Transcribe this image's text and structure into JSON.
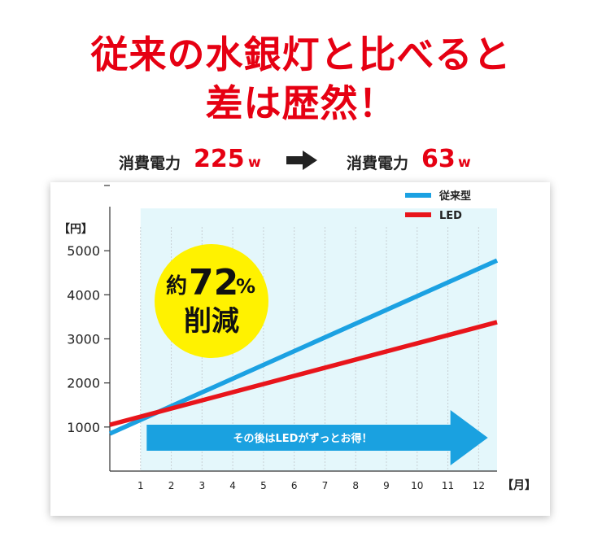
{
  "headline": {
    "line1": "従来の水銀灯と比べると",
    "line2": "差は歴然！"
  },
  "power": {
    "label": "消費電力",
    "before_value": "225",
    "after_value": "63",
    "unit": "w",
    "arrow_icon": "right-arrow-icon"
  },
  "colors": {
    "accent_red": "#e60012",
    "conventional_blue": "#1ba1e2",
    "led_red": "#e8151b",
    "badge_yellow": "#fff200",
    "plot_bg": "#e4f7fb",
    "banner_arrow": "#1aa1e0"
  },
  "badge": {
    "prefix": "約",
    "number": "72",
    "percent": "%",
    "word": "削減"
  },
  "banner": {
    "text": "その後はLEDがずっとお得！",
    "x_start": 1.2,
    "x_end": 12.3
  },
  "chart_data": {
    "type": "line",
    "ylabel": "【円】",
    "xlabel": "【月】",
    "x_ticks": [
      1,
      2,
      3,
      4,
      5,
      6,
      7,
      8,
      9,
      10,
      11,
      12
    ],
    "y_ticks": [
      1000,
      2000,
      3000,
      4000,
      5000
    ],
    "xlim": [
      0,
      12.6
    ],
    "ylim": [
      0,
      6000
    ],
    "highlight_range_x": [
      1,
      12.6
    ],
    "legend_position": "top-right",
    "grid": "vertical",
    "series": [
      {
        "name": "従来型",
        "color": "#1ba1e2",
        "x": [
          0,
          12.6
        ],
        "y": [
          850,
          4780
        ]
      },
      {
        "name": "LED",
        "color": "#e8151b",
        "x": [
          0,
          12.6
        ],
        "y": [
          1050,
          3380
        ]
      }
    ]
  }
}
